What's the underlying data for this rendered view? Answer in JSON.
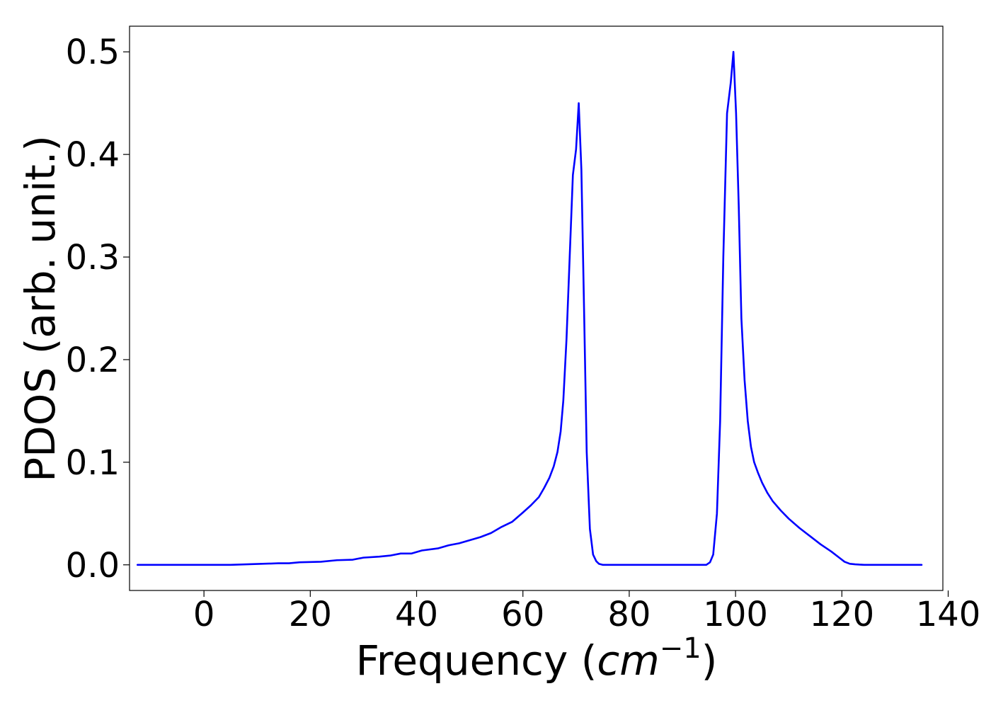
{
  "chart_data": {
    "type": "line",
    "title": "",
    "xlabel": "Frequency",
    "xlabel_unit_open": "(",
    "xlabel_unit_base": "cm",
    "xlabel_unit_exp": "−1",
    "xlabel_unit_close": ")",
    "ylabel": "PDOS (arb. unit.)",
    "xlim": [
      -14,
      139
    ],
    "ylim": [
      -0.025,
      0.525
    ],
    "xticks": [
      0,
      20,
      40,
      60,
      80,
      100,
      120,
      140
    ],
    "xtick_labels": [
      "0",
      "20",
      "40",
      "60",
      "80",
      "100",
      "120",
      "140"
    ],
    "yticks": [
      0.0,
      0.1,
      0.2,
      0.3,
      0.4,
      0.5
    ],
    "ytick_labels": [
      "0.0",
      "0.1",
      "0.2",
      "0.3",
      "0.4",
      "0.5"
    ],
    "grid": false,
    "legend": "none",
    "series": [
      {
        "color": "#0000ff",
        "x": [
          -12.5,
          0,
          5,
          10,
          14,
          16,
          18,
          22,
          25,
          28,
          30,
          33,
          35,
          37,
          39,
          41,
          44,
          46,
          48,
          50,
          52,
          54,
          56,
          58,
          60,
          61.5,
          63,
          64,
          65,
          65.8,
          66.5,
          67.1,
          67.6,
          68.2,
          68.8,
          69.4,
          70,
          70.5,
          71,
          71.5,
          72,
          72.6,
          73.2,
          73.8,
          74.3,
          75,
          76,
          80,
          85,
          90,
          94.5,
          95.2,
          95.8,
          96.5,
          97.1,
          97.7,
          98.4,
          99.1,
          99.6,
          100.1,
          100.6,
          101.1,
          101.7,
          102.3,
          102.9,
          103.5,
          104.2,
          105,
          106,
          107,
          108.5,
          110,
          112,
          114,
          116,
          118,
          119.5,
          120.5,
          121.5,
          122.5,
          123.3,
          124.2,
          125,
          128,
          135
        ],
        "y": [
          0.0,
          0.0,
          0.0,
          0.0008,
          0.0015,
          0.0015,
          0.0025,
          0.003,
          0.0045,
          0.005,
          0.007,
          0.008,
          0.009,
          0.011,
          0.011,
          0.014,
          0.016,
          0.019,
          0.021,
          0.024,
          0.027,
          0.031,
          0.037,
          0.042,
          0.051,
          0.058,
          0.066,
          0.075,
          0.085,
          0.096,
          0.11,
          0.13,
          0.16,
          0.22,
          0.3,
          0.38,
          0.405,
          0.45,
          0.385,
          0.25,
          0.11,
          0.035,
          0.01,
          0.0035,
          0.001,
          0.0,
          0.0,
          0.0,
          0.0,
          0.0,
          0.0,
          0.0025,
          0.01,
          0.05,
          0.14,
          0.3,
          0.44,
          0.47,
          0.5,
          0.44,
          0.35,
          0.24,
          0.18,
          0.14,
          0.115,
          0.1,
          0.09,
          0.08,
          0.07,
          0.062,
          0.053,
          0.045,
          0.036,
          0.028,
          0.02,
          0.013,
          0.007,
          0.003,
          0.001,
          0.0005,
          0.0002,
          0.0,
          0.0,
          0.0,
          0.0
        ]
      }
    ]
  }
}
